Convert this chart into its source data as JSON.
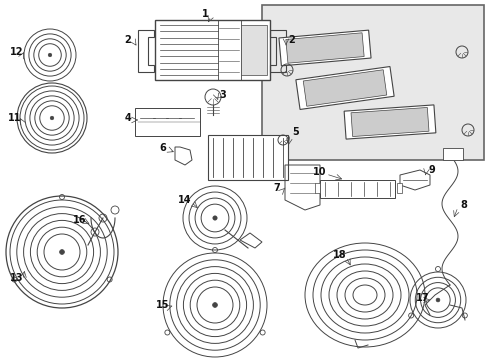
{
  "bg_color": "#ffffff",
  "line_color": "#444444",
  "label_color": "#111111",
  "inset_bg": "#e8e8e8",
  "figsize": [
    4.89,
    3.6
  ],
  "dpi": 100
}
